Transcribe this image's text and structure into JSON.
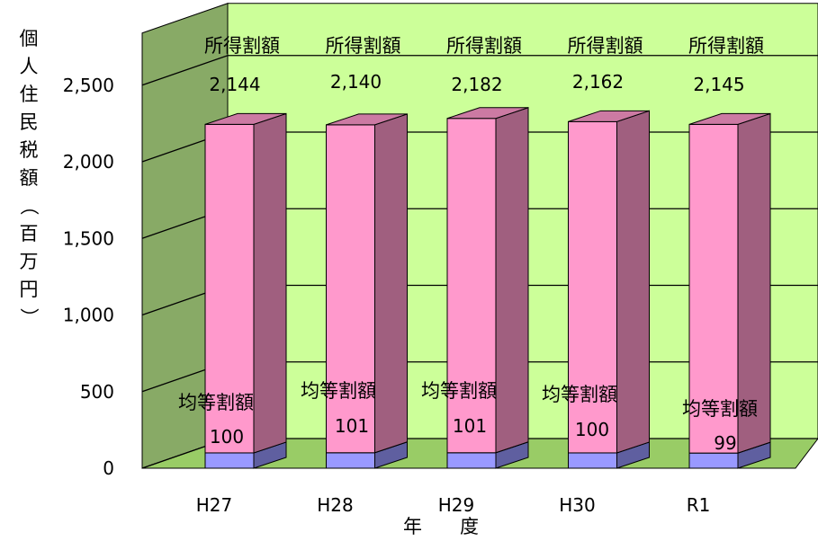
{
  "chart_data": {
    "type": "bar",
    "stacked": true,
    "three_d": true,
    "categories": [
      "H27",
      "H28",
      "H29",
      "H30",
      "R1"
    ],
    "series": [
      {
        "name": "均等割額",
        "values": [
          100,
          101,
          101,
          100,
          99
        ]
      },
      {
        "name": "所得割額",
        "values": [
          2144,
          2140,
          2182,
          2162,
          2145
        ]
      }
    ],
    "ylabel": "個人住民税額（百万円）",
    "xlabel": "年　　度",
    "ylim": [
      0,
      2500
    ],
    "yticks": [
      "0",
      "500",
      "1,000",
      "1,500",
      "2,000",
      "2,500"
    ],
    "value_labels": {
      "均等割額": [
        "100",
        "101",
        "101",
        "100",
        "99"
      ],
      "所得割額": [
        "2,144",
        "2,140",
        "2,182",
        "2,162",
        "2,145"
      ]
    },
    "grid": true,
    "legend": "none",
    "colors": {
      "wall": "#ccff99",
      "side_wall": "#88aa66",
      "floor": "#99cc66",
      "top_series_front": "#ff99cc",
      "top_series_side": "#a05f7f",
      "top_series_top": "#cc7aa3",
      "bottom_series_front": "#9999ff",
      "bottom_series_side": "#5f5fa0",
      "bottom_series_top": "#7a7acc"
    }
  }
}
